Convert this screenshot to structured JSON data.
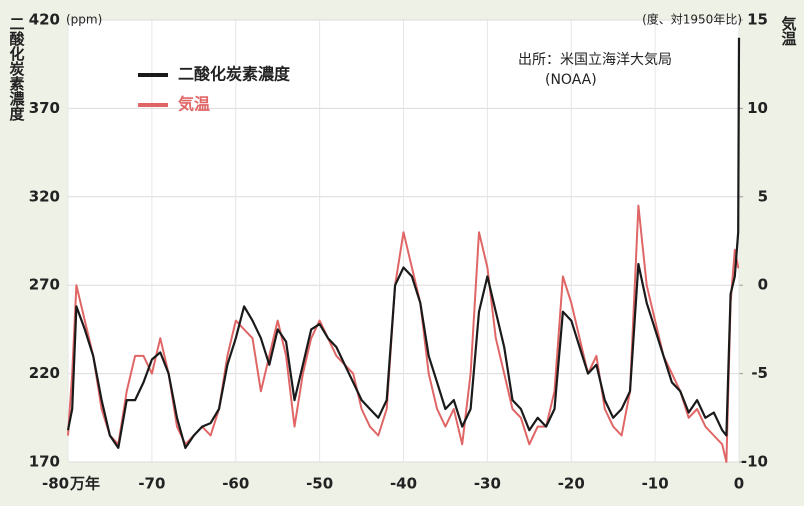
{
  "chart_data": {
    "type": "line",
    "xlabel": "万年",
    "ylabel": "二酸化炭素濃度",
    "y2label": "気温",
    "yunit": "(ppm)",
    "y2unit": "(度、対1950年比)",
    "annotation": [
      "出所：米国立海洋大気局",
      "(NOAA)"
    ],
    "legend": "upper left",
    "grid": true,
    "xlim": [
      -80,
      0
    ],
    "xticks": [
      -80,
      -70,
      -60,
      -50,
      -40,
      -30,
      -20,
      -10,
      0
    ],
    "ylim": [
      170,
      420
    ],
    "yticks": [
      170,
      220,
      270,
      320,
      370,
      420
    ],
    "y2lim": [
      -10,
      15
    ],
    "y2ticks": [
      -10,
      -5,
      0,
      5,
      10,
      15
    ],
    "x": [
      -80,
      -79.5,
      -79,
      -78,
      -77,
      -76,
      -75,
      -74,
      -73,
      -72,
      -71,
      -70,
      -69,
      -68,
      -67,
      -66,
      -65,
      -64,
      -63,
      -62,
      -61,
      -60,
      -59,
      -58,
      -57,
      -56,
      -55,
      -54,
      -53,
      -52,
      -51,
      -50,
      -49,
      -48,
      -47,
      -46,
      -45,
      -44,
      -43,
      -42,
      -41,
      -40,
      -39,
      -38,
      -37,
      -36,
      -35,
      -34,
      -33,
      -32,
      -31,
      -30,
      -29,
      -28,
      -27,
      -26,
      -25,
      -24,
      -23,
      -22,
      -21,
      -20,
      -19,
      -18,
      -17,
      -16,
      -15,
      -14,
      -13,
      -12,
      -11,
      -10,
      -9,
      -8,
      -7,
      -6,
      -5,
      -4,
      -3,
      -2,
      -1.5,
      -1,
      -0.5,
      -0.1,
      0
    ],
    "series": [
      {
        "name": "二酸化炭素濃度",
        "color": "#1a1a1a",
        "values": [
          188,
          200,
          258,
          245,
          230,
          205,
          185,
          178,
          205,
          205,
          215,
          228,
          232,
          220,
          195,
          178,
          185,
          190,
          192,
          200,
          225,
          240,
          258,
          250,
          240,
          225,
          245,
          238,
          205,
          225,
          245,
          248,
          240,
          235,
          225,
          215,
          205,
          200,
          195,
          205,
          270,
          280,
          275,
          260,
          230,
          215,
          200,
          205,
          190,
          200,
          255,
          275,
          255,
          235,
          205,
          200,
          188,
          195,
          190,
          200,
          255,
          250,
          235,
          220,
          225,
          205,
          195,
          200,
          210,
          282,
          260,
          245,
          230,
          215,
          210,
          198,
          205,
          195,
          198,
          188,
          185,
          265,
          275,
          300,
          410
        ]
      },
      {
        "name": "気温",
        "color": "#e06666",
        "axis": "y2",
        "values": [
          -8.5,
          -5,
          0,
          -2,
          -4,
          -7,
          -8.5,
          -9,
          -6,
          -4,
          -4,
          -5,
          -3,
          -5,
          -8,
          -9,
          -8.5,
          -8,
          -8.5,
          -7,
          -4,
          -2,
          -2.5,
          -3,
          -6,
          -4,
          -2,
          -4,
          -8,
          -5,
          -3,
          -2,
          -3,
          -4,
          -4.5,
          -5,
          -7,
          -8,
          -8.5,
          -7,
          0,
          3,
          1,
          -1,
          -5,
          -7,
          -8,
          -7,
          -9,
          -5,
          3,
          1,
          -3,
          -5,
          -7,
          -7.5,
          -9,
          -8,
          -8,
          -6,
          0.5,
          -1,
          -3,
          -5,
          -4,
          -7,
          -8,
          -8.5,
          -6,
          4.5,
          0,
          -2,
          -4,
          -5,
          -6,
          -7.5,
          -7,
          -8,
          -8.5,
          -9,
          -10,
          -1,
          2,
          1,
          1
        ]
      }
    ]
  }
}
